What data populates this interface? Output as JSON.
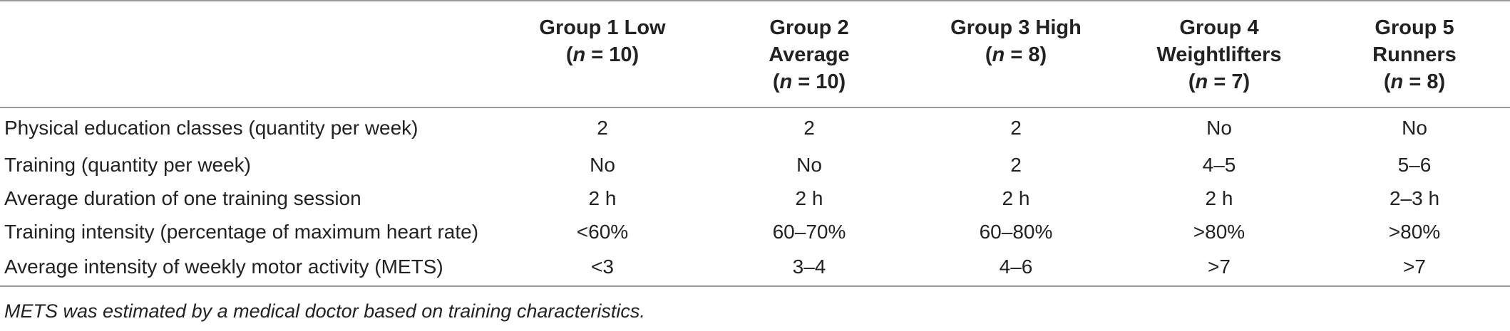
{
  "table": {
    "columns": [
      {
        "line1": "Group 1 Low",
        "line2": "",
        "n_label": "n",
        "n_value": " = 10"
      },
      {
        "line1": "Group 2",
        "line2": "Average",
        "n_label": "n",
        "n_value": " = 10"
      },
      {
        "line1": "Group 3 High",
        "line2": "",
        "n_label": "n",
        "n_value": " = 8"
      },
      {
        "line1": "Group 4",
        "line2": "Weightlifters",
        "n_label": "n",
        "n_value": " = 7"
      },
      {
        "line1": "Group 5",
        "line2": "Runners",
        "n_label": "n",
        "n_value": " = 8"
      }
    ],
    "rows": [
      {
        "label": "Physical education classes (quantity per week)",
        "values": [
          "2",
          "2",
          "2",
          "No",
          "No"
        ]
      },
      {
        "label": "Training (quantity per week)",
        "values": [
          "No",
          "No",
          "2",
          "4–5",
          "5–6"
        ]
      },
      {
        "label": "Average duration of one training session",
        "values": [
          "2 h",
          "2 h",
          "2 h",
          "2 h",
          "2–3 h"
        ]
      },
      {
        "label": "Training intensity (percentage of maximum heart rate)",
        "values": [
          "<60%",
          "60–70%",
          "60–80%",
          ">80%",
          ">80%"
        ]
      },
      {
        "label": "Average intensity of weekly motor activity (METS)",
        "values": [
          "<3",
          "3–4",
          "4–6",
          ">7",
          ">7"
        ]
      }
    ]
  },
  "footnote": "METS was estimated by a medical doctor based on training characteristics."
}
